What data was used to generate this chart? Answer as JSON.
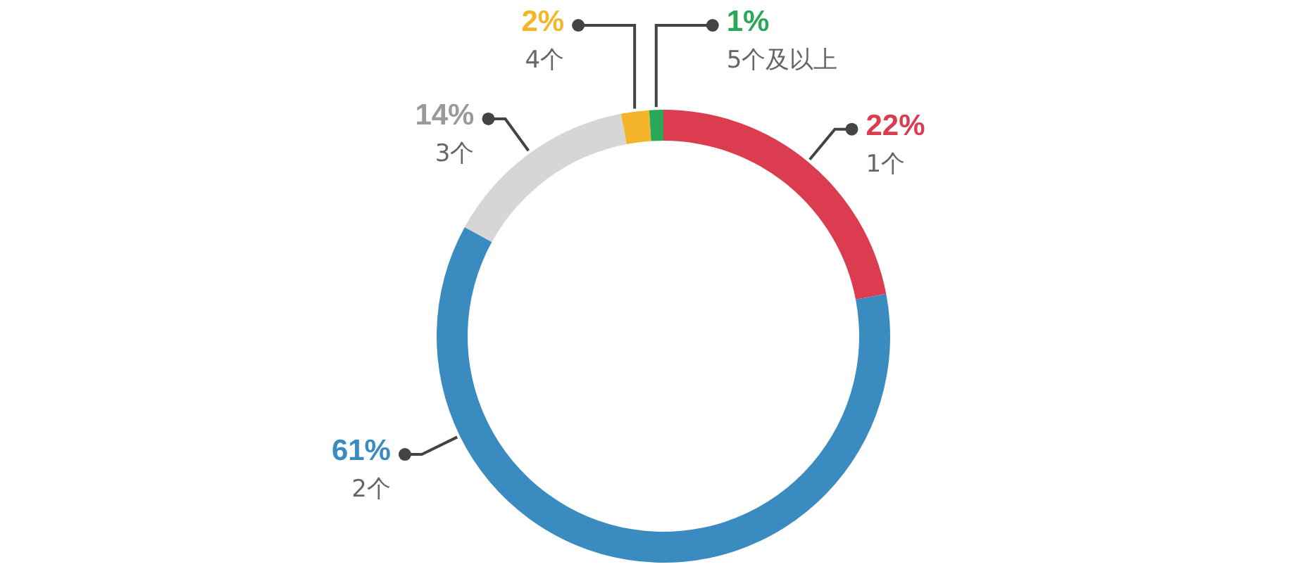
{
  "chart_data": {
    "type": "donut",
    "categories": [
      "1个",
      "2个",
      "3个",
      "4个",
      "5个及以上"
    ],
    "values": [
      22,
      61,
      14,
      2,
      1
    ],
    "value_labels": [
      "22%",
      "61%",
      "14%",
      "2%",
      "1%"
    ],
    "colors": [
      "#dc3c50",
      "#3a8bc0",
      "#d6d6d6",
      "#f5b52a",
      "#2aa85a"
    ],
    "legend": false
  }
}
